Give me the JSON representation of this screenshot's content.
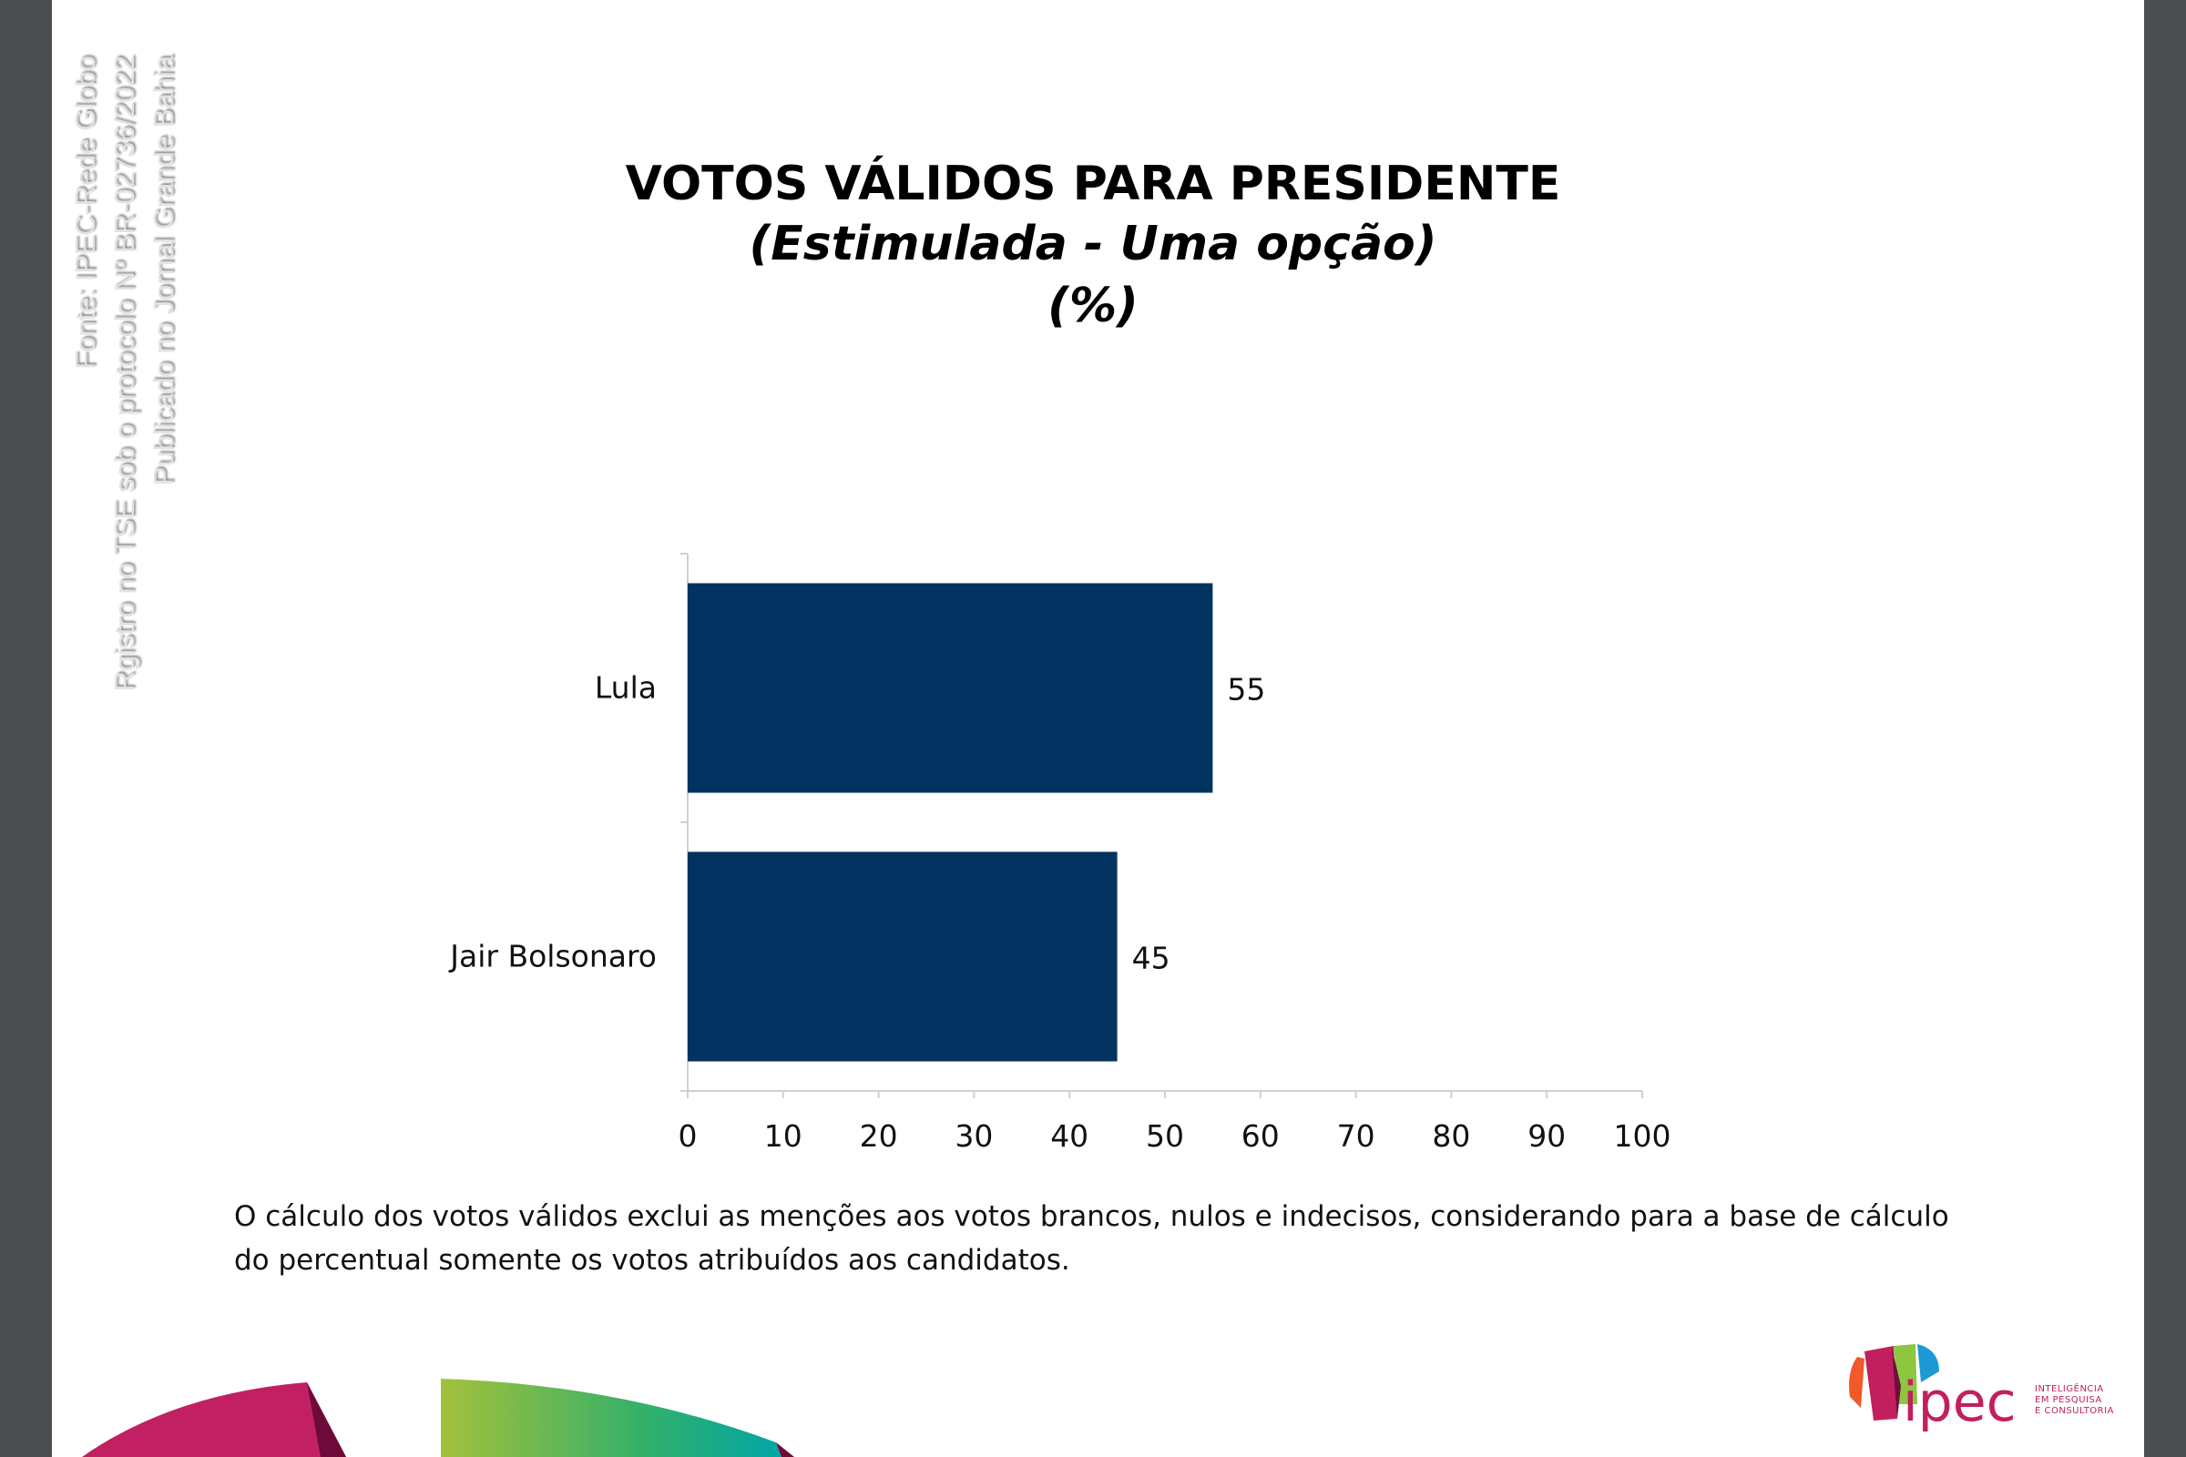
{
  "watermark": {
    "line1": "Fonte: IPEC-Rede Globo",
    "line2": "Rgistro no TSE sob o protocolo Nº BR-02736/2022",
    "line3": "Publicado no Jornal Grande Bahia"
  },
  "chart_data": {
    "type": "bar",
    "orientation": "horizontal",
    "title": "VOTOS VÁLIDOS PARA PRESIDENTE",
    "subtitle": "(Estimulada - Uma opção)",
    "unit_label": "(%)",
    "categories": [
      "Lula",
      "Jair Bolsonaro"
    ],
    "values": [
      55,
      45
    ],
    "data_labels": [
      "55",
      "45"
    ],
    "xlim": [
      0,
      100
    ],
    "xticks": [
      "0",
      "10",
      "20",
      "30",
      "40",
      "50",
      "60",
      "70",
      "80",
      "90",
      "100"
    ],
    "grid": false,
    "bar_color": "#02325f"
  },
  "footnote": {
    "line1": "O cálculo dos votos válidos exclui as menções aos votos brancos, nulos e indecisos, considerando para a base de cálculo",
    "line2": "do percentual somente os votos atribuídos aos candidatos."
  },
  "logo": {
    "name": "ipec",
    "tagline": [
      "INTELIGÊNCIA",
      "EM PESQUISA",
      "E CONSULTORIA"
    ],
    "colors": [
      "#f05a28",
      "#c21f5f",
      "#8dc63f",
      "#1d9ad6",
      "#6d0f3d"
    ]
  }
}
